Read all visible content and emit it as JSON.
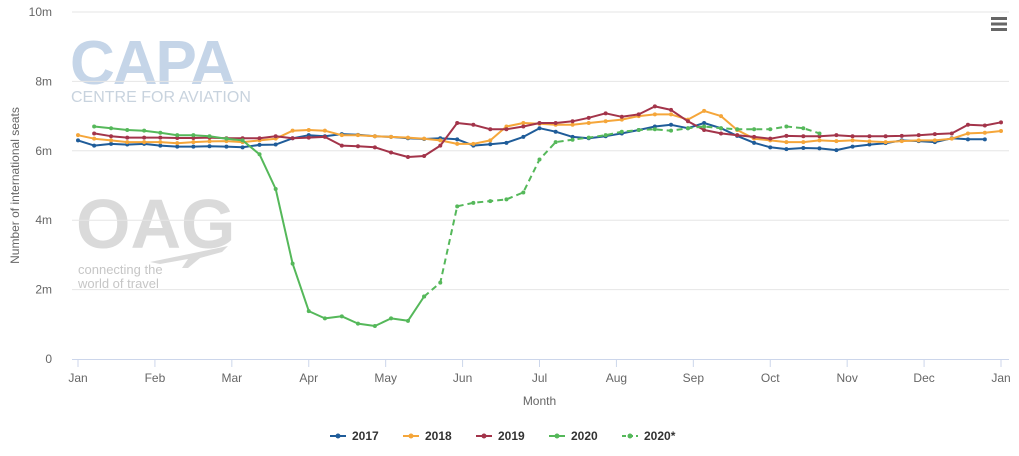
{
  "watermark": {
    "capa_logo": "CAPA",
    "capa_tagline": "CENTRE FOR AVIATION",
    "oag_logo": "OAG",
    "oag_tagline_1": "connecting the",
    "oag_tagline_2": "world of travel"
  },
  "menu": {
    "icon": "hamburger-menu-icon"
  },
  "chart_data": {
    "type": "line",
    "xlabel": "Month",
    "ylabel": "Number of international seats",
    "ylim": [
      0,
      10
    ],
    "yticks": [
      {
        "value": 0,
        "label": "0"
      },
      {
        "value": 2,
        "label": "2m"
      },
      {
        "value": 4,
        "label": "4m"
      },
      {
        "value": 6,
        "label": "6m"
      },
      {
        "value": 8,
        "label": "8m"
      },
      {
        "value": 10,
        "label": "10m"
      }
    ],
    "xlim": [
      0,
      12
    ],
    "xticks": [
      {
        "value": 0,
        "label": "Jan"
      },
      {
        "value": 1,
        "label": "Feb"
      },
      {
        "value": 2,
        "label": "Mar"
      },
      {
        "value": 3,
        "label": "Apr"
      },
      {
        "value": 4,
        "label": "May"
      },
      {
        "value": 5,
        "label": "Jun"
      },
      {
        "value": 6,
        "label": "Jul"
      },
      {
        "value": 7,
        "label": "Aug"
      },
      {
        "value": 8,
        "label": "Sep"
      },
      {
        "value": 9,
        "label": "Oct"
      },
      {
        "value": 10,
        "label": "Nov"
      },
      {
        "value": 11,
        "label": "Dec"
      },
      {
        "value": 12,
        "label": "Jan"
      }
    ],
    "grid": true,
    "legend_position": "bottom-center",
    "series": [
      {
        "name": "2017",
        "color": "#1f5c99",
        "dashed": false,
        "x": [
          0.0,
          0.21,
          0.43,
          0.64,
          0.86,
          1.07,
          1.29,
          1.5,
          1.71,
          1.93,
          2.14,
          2.36,
          2.57,
          2.79,
          3.0,
          3.21,
          3.43,
          3.64,
          3.86,
          4.07,
          4.29,
          4.5,
          4.71,
          4.93,
          5.14,
          5.36,
          5.57,
          5.79,
          6.0,
          6.21,
          6.43,
          6.64,
          6.86,
          7.07,
          7.29,
          7.5,
          7.71,
          7.93,
          8.14,
          8.36,
          8.57,
          8.79,
          9.0,
          9.21,
          9.43,
          9.64,
          9.86,
          10.07,
          10.29,
          10.5,
          10.71,
          10.93,
          11.14,
          11.36,
          11.57,
          11.79
        ],
        "y": [
          6.3,
          6.15,
          6.2,
          6.18,
          6.2,
          6.15,
          6.12,
          6.12,
          6.13,
          6.12,
          6.1,
          6.17,
          6.18,
          6.36,
          6.45,
          6.42,
          6.48,
          6.46,
          6.42,
          6.4,
          6.36,
          6.34,
          6.36,
          6.33,
          6.15,
          6.19,
          6.23,
          6.4,
          6.65,
          6.55,
          6.4,
          6.36,
          6.42,
          6.5,
          6.6,
          6.7,
          6.75,
          6.65,
          6.8,
          6.65,
          6.43,
          6.23,
          6.1,
          6.05,
          6.08,
          6.07,
          6.02,
          6.12,
          6.18,
          6.22,
          6.3,
          6.28,
          6.25,
          6.36,
          6.33,
          6.33
        ]
      },
      {
        "name": "2018",
        "color": "#f5a63a",
        "dashed": false,
        "x": [
          0.0,
          0.21,
          0.43,
          0.64,
          0.86,
          1.07,
          1.29,
          1.5,
          1.71,
          1.93,
          2.14,
          2.36,
          2.57,
          2.79,
          3.0,
          3.21,
          3.43,
          3.64,
          3.86,
          4.07,
          4.29,
          4.5,
          4.71,
          4.93,
          5.14,
          5.36,
          5.57,
          5.79,
          6.0,
          6.21,
          6.43,
          6.64,
          6.86,
          7.07,
          7.29,
          7.5,
          7.71,
          7.93,
          8.14,
          8.36,
          8.57,
          8.79,
          9.0,
          9.21,
          9.43,
          9.64,
          9.86,
          10.07,
          10.29,
          10.5,
          10.71,
          10.93,
          11.14,
          11.36,
          11.57,
          11.79,
          12.0
        ],
        "y": [
          6.45,
          6.35,
          6.3,
          6.25,
          6.25,
          6.25,
          6.22,
          6.25,
          6.27,
          6.28,
          6.25,
          6.3,
          6.35,
          6.58,
          6.6,
          6.58,
          6.45,
          6.45,
          6.42,
          6.4,
          6.38,
          6.35,
          6.3,
          6.2,
          6.2,
          6.3,
          6.7,
          6.8,
          6.78,
          6.75,
          6.75,
          6.8,
          6.85,
          6.9,
          7.0,
          7.05,
          7.05,
          6.9,
          7.15,
          7.0,
          6.6,
          6.35,
          6.3,
          6.25,
          6.25,
          6.3,
          6.28,
          6.3,
          6.27,
          6.25,
          6.28,
          6.3,
          6.3,
          6.35,
          6.5,
          6.52,
          6.57
        ]
      },
      {
        "name": "2019",
        "color": "#a3344a",
        "dashed": false,
        "x": [
          0.21,
          0.43,
          0.64,
          0.86,
          1.07,
          1.29,
          1.5,
          1.71,
          1.93,
          2.14,
          2.36,
          2.57,
          2.79,
          3.0,
          3.21,
          3.43,
          3.64,
          3.86,
          4.07,
          4.29,
          4.5,
          4.71,
          4.93,
          5.14,
          5.36,
          5.57,
          5.79,
          6.0,
          6.21,
          6.43,
          6.64,
          6.86,
          7.07,
          7.29,
          7.5,
          7.71,
          7.93,
          8.14,
          8.36,
          8.57,
          8.79,
          9.0,
          9.21,
          9.43,
          9.64,
          9.86,
          10.07,
          10.29,
          10.5,
          10.71,
          10.93,
          11.14,
          11.36,
          11.57,
          11.79,
          12.0
        ],
        "y": [
          6.5,
          6.42,
          6.38,
          6.38,
          6.38,
          6.37,
          6.37,
          6.38,
          6.36,
          6.36,
          6.36,
          6.42,
          6.36,
          6.38,
          6.4,
          6.15,
          6.13,
          6.1,
          5.95,
          5.82,
          5.85,
          6.15,
          6.8,
          6.75,
          6.62,
          6.62,
          6.7,
          6.8,
          6.8,
          6.85,
          6.95,
          7.08,
          6.98,
          7.05,
          7.28,
          7.18,
          6.85,
          6.6,
          6.5,
          6.45,
          6.4,
          6.35,
          6.43,
          6.42,
          6.42,
          6.45,
          6.42,
          6.42,
          6.42,
          6.43,
          6.45,
          6.48,
          6.5,
          6.75,
          6.73,
          6.82
        ]
      },
      {
        "name": "2020",
        "color": "#55b85a",
        "dashed": false,
        "x": [
          0.21,
          0.43,
          0.64,
          0.86,
          1.07,
          1.29,
          1.5,
          1.71,
          1.93,
          2.14,
          2.36,
          2.57,
          2.79,
          3.0,
          3.21,
          3.43,
          3.64,
          3.86,
          4.07,
          4.29,
          4.5
        ],
        "y": [
          6.7,
          6.65,
          6.6,
          6.58,
          6.52,
          6.45,
          6.45,
          6.42,
          6.35,
          6.3,
          5.9,
          4.9,
          2.75,
          1.38,
          1.17,
          1.23,
          1.02,
          0.95,
          1.17,
          1.1,
          1.8
        ]
      },
      {
        "name": "2020*",
        "color": "#55b85a",
        "dashed": true,
        "x": [
          4.5,
          4.71,
          4.93,
          5.14,
          5.36,
          5.57,
          5.79,
          6.0,
          6.21,
          6.43,
          6.64,
          6.86,
          7.07,
          7.29,
          7.5,
          7.71,
          7.93,
          8.14,
          8.36,
          8.57,
          8.79,
          9.0,
          9.21,
          9.43,
          9.64
        ],
        "y": [
          1.8,
          2.2,
          4.4,
          4.5,
          4.55,
          4.6,
          4.8,
          5.75,
          6.25,
          6.32,
          6.38,
          6.45,
          6.55,
          6.6,
          6.62,
          6.58,
          6.65,
          6.7,
          6.65,
          6.62,
          6.62,
          6.62,
          6.7,
          6.65,
          6.5
        ]
      }
    ]
  }
}
